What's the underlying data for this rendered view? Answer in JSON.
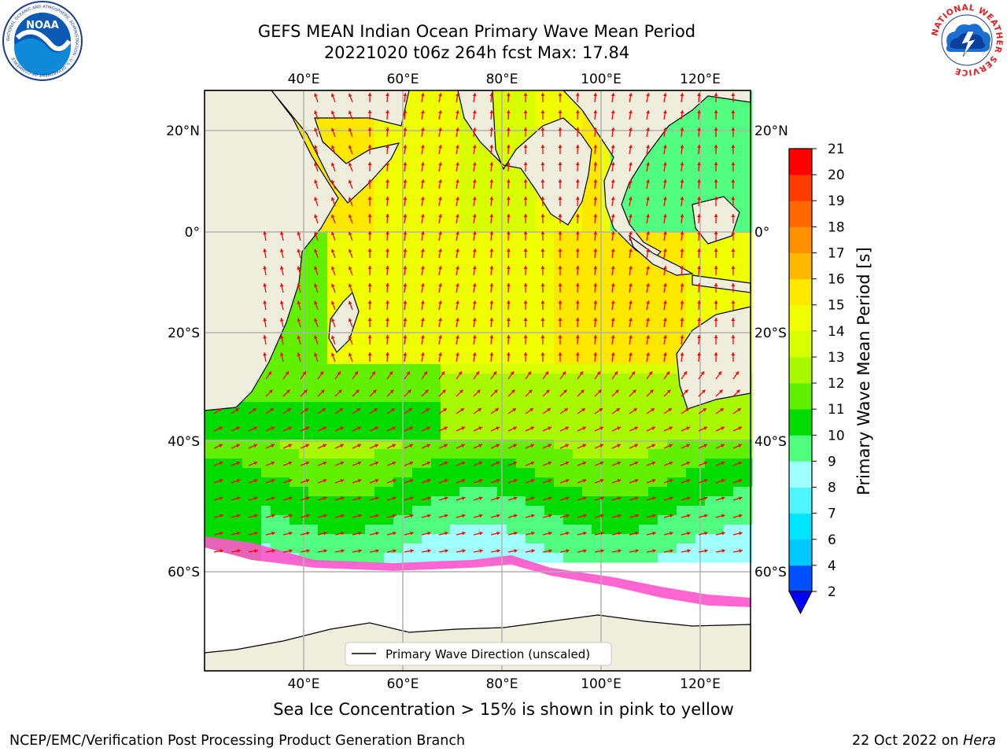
{
  "title": {
    "line1": "GEFS MEAN Indian Ocean Primary Wave Mean Period",
    "line2": "20221020 t06z 264h fcst   Max: 17.84"
  },
  "axes": {
    "lon_ticks": [
      "40°E",
      "60°E",
      "80°E",
      "100°E",
      "120°E"
    ],
    "lat_ticks_left": [
      "20°N",
      "0°",
      "20°S",
      "40°S",
      "60°S"
    ],
    "lat_ticks_right": [
      "20°N",
      "0°",
      "20°S",
      "40°S",
      "60°S"
    ]
  },
  "legend": {
    "label": "Primary Wave Direction (unscaled)"
  },
  "colorbar": {
    "label": "Primary Wave Mean Period [s]",
    "ticks": [
      "2",
      "4",
      "6",
      "7",
      "8",
      "9",
      "10",
      "11",
      "12",
      "13",
      "14",
      "15",
      "16",
      "17",
      "18",
      "19",
      "20",
      "21"
    ],
    "colors": [
      "#0050ff",
      "#00c8ff",
      "#00e5ff",
      "#50f5ff",
      "#a0ffff",
      "#50ff80",
      "#00dc00",
      "#60f000",
      "#a8f800",
      "#d8ff00",
      "#f0ff00",
      "#ffe800",
      "#ffb800",
      "#ff9000",
      "#ff6800",
      "#ff3c00",
      "#ff0000"
    ],
    "extend_color": "#0000ff"
  },
  "colors": {
    "land": "#efeedd",
    "ice": "#ff55cc",
    "arrow": "#ff0000",
    "grid": "#b0b0b0"
  },
  "caption": "Sea Ice Concentration > 15% is shown in pink to yellow",
  "footer": {
    "left": "NCEP/EMC/Verification Post Processing Product Generation Branch",
    "right_date": "22 Oct 2022 on",
    "right_machine": "Hera"
  },
  "logos": {
    "left_icon": "noaa-logo-icon",
    "left_text": "NOAA",
    "left_ring": "NATIONAL OCEANIC AND ATMOSPHERIC ADMINISTRATION · U.S. DEPARTMENT OF COMMERCE",
    "right_icon": "nws-logo-icon",
    "right_ring": "NATIONAL WEATHER SERVICE"
  }
}
